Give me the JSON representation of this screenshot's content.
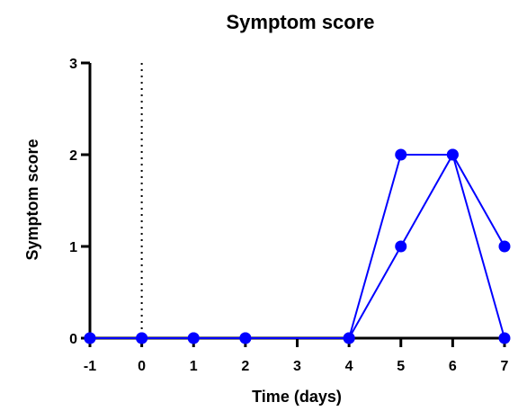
{
  "chart_data": {
    "type": "line",
    "title": "Symptom score",
    "xlabel": "Time (days)",
    "ylabel": "Symptom score",
    "xlim": [
      -1,
      7
    ],
    "ylim": [
      0,
      3
    ],
    "x_ticks": [
      -1,
      0,
      1,
      2,
      3,
      4,
      5,
      6,
      7
    ],
    "y_ticks": [
      0,
      1,
      2,
      3
    ],
    "reference_line": {
      "x": 0,
      "style": "dotted"
    },
    "grid": false,
    "legend": "none",
    "series_color": "#0000ff",
    "series": [
      {
        "x": [
          -1,
          0,
          1,
          2,
          4,
          5,
          6,
          7
        ],
        "y": [
          0,
          0,
          0,
          0,
          0,
          2,
          2,
          1
        ]
      },
      {
        "x": [
          -1,
          0,
          1,
          2,
          4,
          5,
          6,
          7
        ],
        "y": [
          0,
          0,
          0,
          0,
          0,
          1,
          2,
          0
        ]
      }
    ]
  }
}
